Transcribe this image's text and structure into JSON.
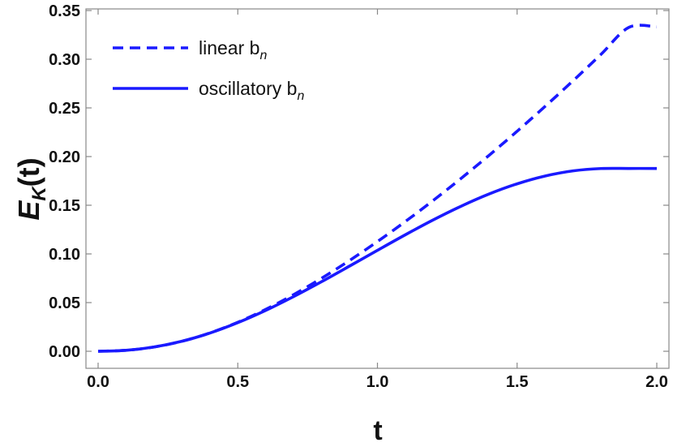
{
  "chart_data": {
    "type": "line",
    "xlabel": "t",
    "ylabel": {
      "main": "E",
      "sub": "K",
      "rest": "(t)"
    },
    "xlim": [
      0.0,
      2.0
    ],
    "ylim": [
      0.0,
      0.35
    ],
    "xticks": [
      "0.0",
      "0.5",
      "1.0",
      "1.5",
      "2.0"
    ],
    "yticks": [
      "0.00",
      "0.05",
      "0.10",
      "0.15",
      "0.20",
      "0.25",
      "0.30",
      "0.35"
    ],
    "grid": false,
    "legend_position": "top-left",
    "series": [
      {
        "name": "linear b",
        "name_sub": "n",
        "style": "dashed",
        "color": "#1a1aff",
        "x": [
          0.0,
          0.1,
          0.2,
          0.3,
          0.4,
          0.5,
          0.6,
          0.7,
          0.8,
          0.9,
          1.0,
          1.1,
          1.2,
          1.3,
          1.4,
          1.5,
          1.6,
          1.7,
          1.8,
          1.9,
          2.0
        ],
        "values": [
          0.0,
          0.001,
          0.0044,
          0.0103,
          0.0188,
          0.0298,
          0.043,
          0.0582,
          0.075,
          0.0932,
          0.1127,
          0.1333,
          0.155,
          0.1777,
          0.2014,
          0.226,
          0.2515,
          0.2778,
          0.3049,
          0.3327,
          0.3332
        ]
      },
      {
        "name": "oscillatory b",
        "name_sub": "n",
        "style": "solid",
        "color": "#1a1aff",
        "x": [
          0.0,
          0.1,
          0.2,
          0.3,
          0.4,
          0.5,
          0.6,
          0.7,
          0.8,
          0.9,
          1.0,
          1.1,
          1.2,
          1.3,
          1.4,
          1.5,
          1.6,
          1.7,
          1.8,
          1.9,
          2.0
        ],
        "values": [
          0.0,
          0.001,
          0.0044,
          0.0103,
          0.0187,
          0.0294,
          0.042,
          0.0562,
          0.0715,
          0.0875,
          0.1037,
          0.1197,
          0.135,
          0.1491,
          0.1616,
          0.172,
          0.18,
          0.1853,
          0.1877,
          0.1878,
          0.1878
        ]
      }
    ]
  },
  "colors": {
    "line": "#1a1aff",
    "axes": "#888888"
  }
}
